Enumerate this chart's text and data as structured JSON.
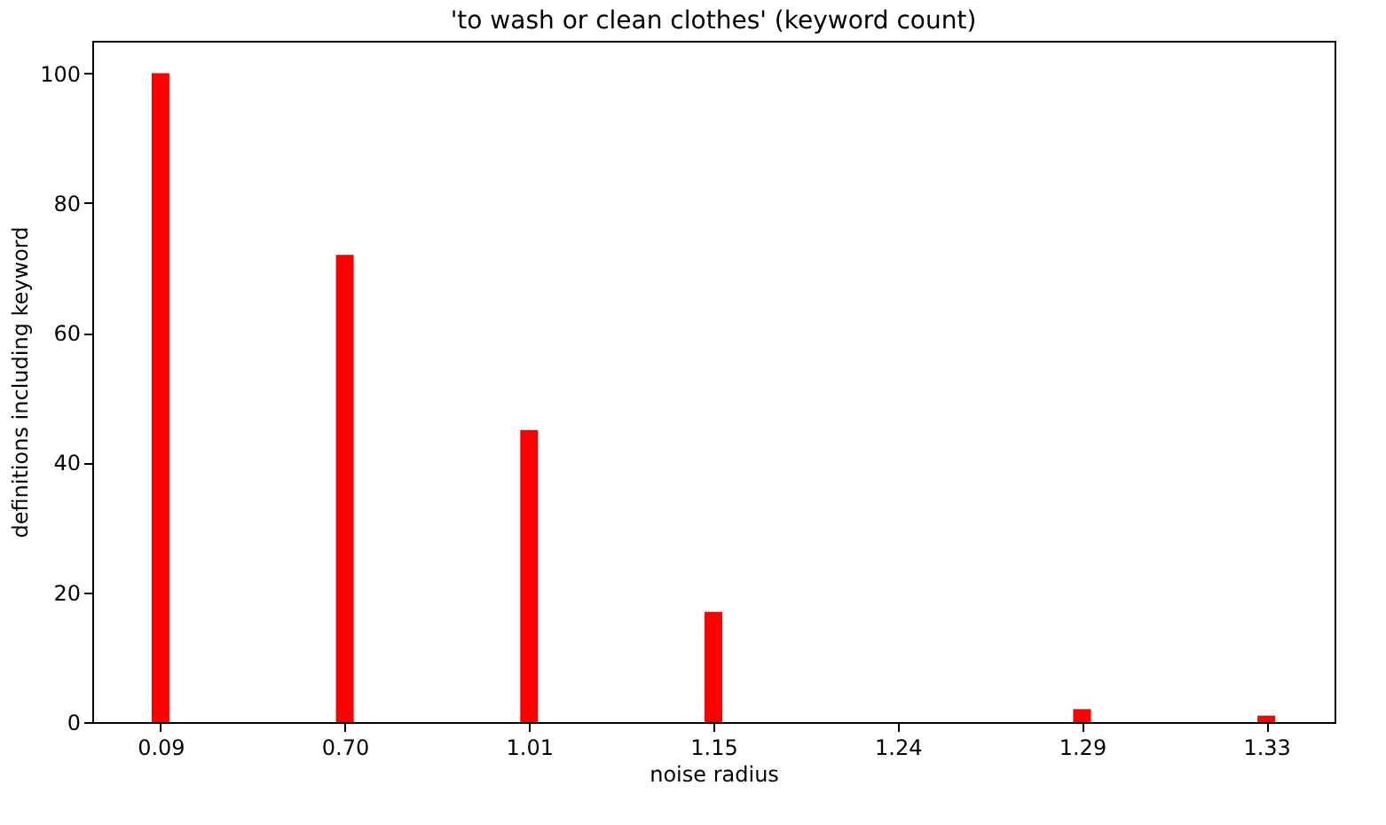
{
  "chart_data": {
    "type": "bar",
    "title": "'to wash or clean clothes' (keyword count)",
    "xlabel": "noise radius",
    "ylabel": "definitions including keyword",
    "categories": [
      "0.09",
      "0.70",
      "1.01",
      "1.15",
      "1.24",
      "1.29",
      "1.33"
    ],
    "values": [
      100,
      72,
      45,
      17,
      0,
      2,
      1
    ],
    "color": "#ff0000",
    "ylim": [
      0,
      105
    ],
    "yticks": [
      0,
      20,
      40,
      60,
      80,
      100
    ],
    "grid": false
  }
}
